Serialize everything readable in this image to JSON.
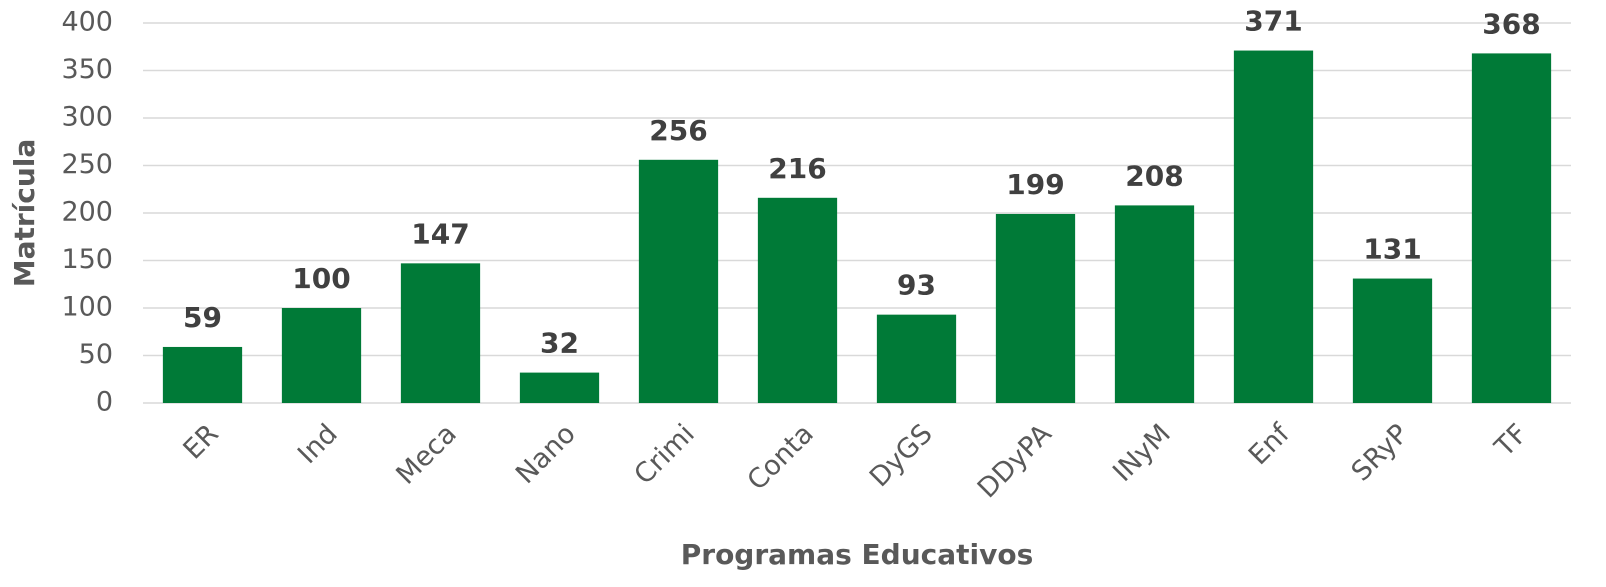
{
  "chart_data": {
    "type": "bar",
    "xlabel": "Programas Educativos",
    "ylabel": "Matrícula",
    "categories": [
      "ER",
      "Ind",
      "Meca",
      "Nano",
      "Crimi",
      "Conta",
      "DyGS",
      "DDyPA",
      "INyM",
      "Enf",
      "SRyP",
      "TF"
    ],
    "values": [
      59,
      100,
      147,
      32,
      256,
      216,
      93,
      199,
      208,
      371,
      131,
      368
    ],
    "color": "#007a37",
    "ylim": [
      0,
      400
    ],
    "yticks": [
      0,
      50,
      100,
      150,
      200,
      250,
      300,
      350,
      400
    ],
    "grid": true
  }
}
